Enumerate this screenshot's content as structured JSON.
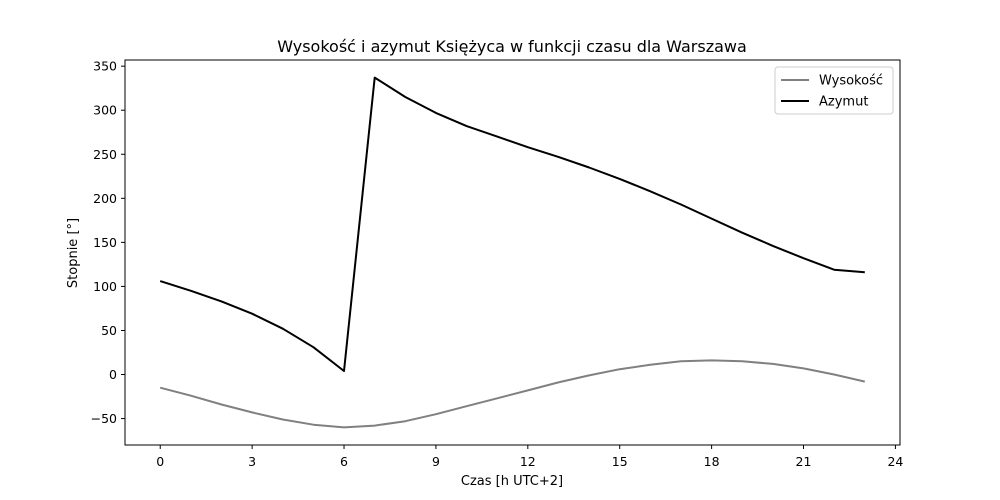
{
  "chart_data": {
    "type": "line",
    "title": "Wysokość i azymut Księżyca w funkcji czasu dla Warszawa",
    "xlabel": "Czas [h UTC+2]",
    "ylabel": "Stopnie [°]",
    "x": [
      0,
      1,
      2,
      3,
      4,
      5,
      6,
      7,
      8,
      9,
      10,
      11,
      12,
      13,
      14,
      15,
      16,
      17,
      18,
      19,
      20,
      21,
      22,
      23
    ],
    "xlim": [
      -1.15,
      24.15
    ],
    "ylim": [
      -80,
      357
    ],
    "xticks": [
      0,
      3,
      6,
      9,
      12,
      15,
      18,
      21,
      24
    ],
    "yticks": [
      -50,
      0,
      50,
      100,
      150,
      200,
      250,
      300,
      350
    ],
    "grid": false,
    "legend_position": "top-right",
    "series": [
      {
        "name": "Wysokość",
        "color": "#808080",
        "values": [
          -15,
          -24,
          -34,
          -43,
          -51,
          -57,
          -60,
          -58,
          -53,
          -45,
          -36,
          -27,
          -18,
          -9,
          -1,
          6,
          11,
          15,
          16,
          15,
          12,
          7,
          0,
          -8
        ]
      },
      {
        "name": "Azymut",
        "color": "#000000",
        "values": [
          106,
          95,
          83,
          69,
          52,
          31,
          4,
          337,
          315,
          297,
          282,
          270,
          258,
          247,
          235,
          222,
          208,
          193,
          177,
          161,
          146,
          132,
          119,
          116
        ]
      }
    ]
  }
}
